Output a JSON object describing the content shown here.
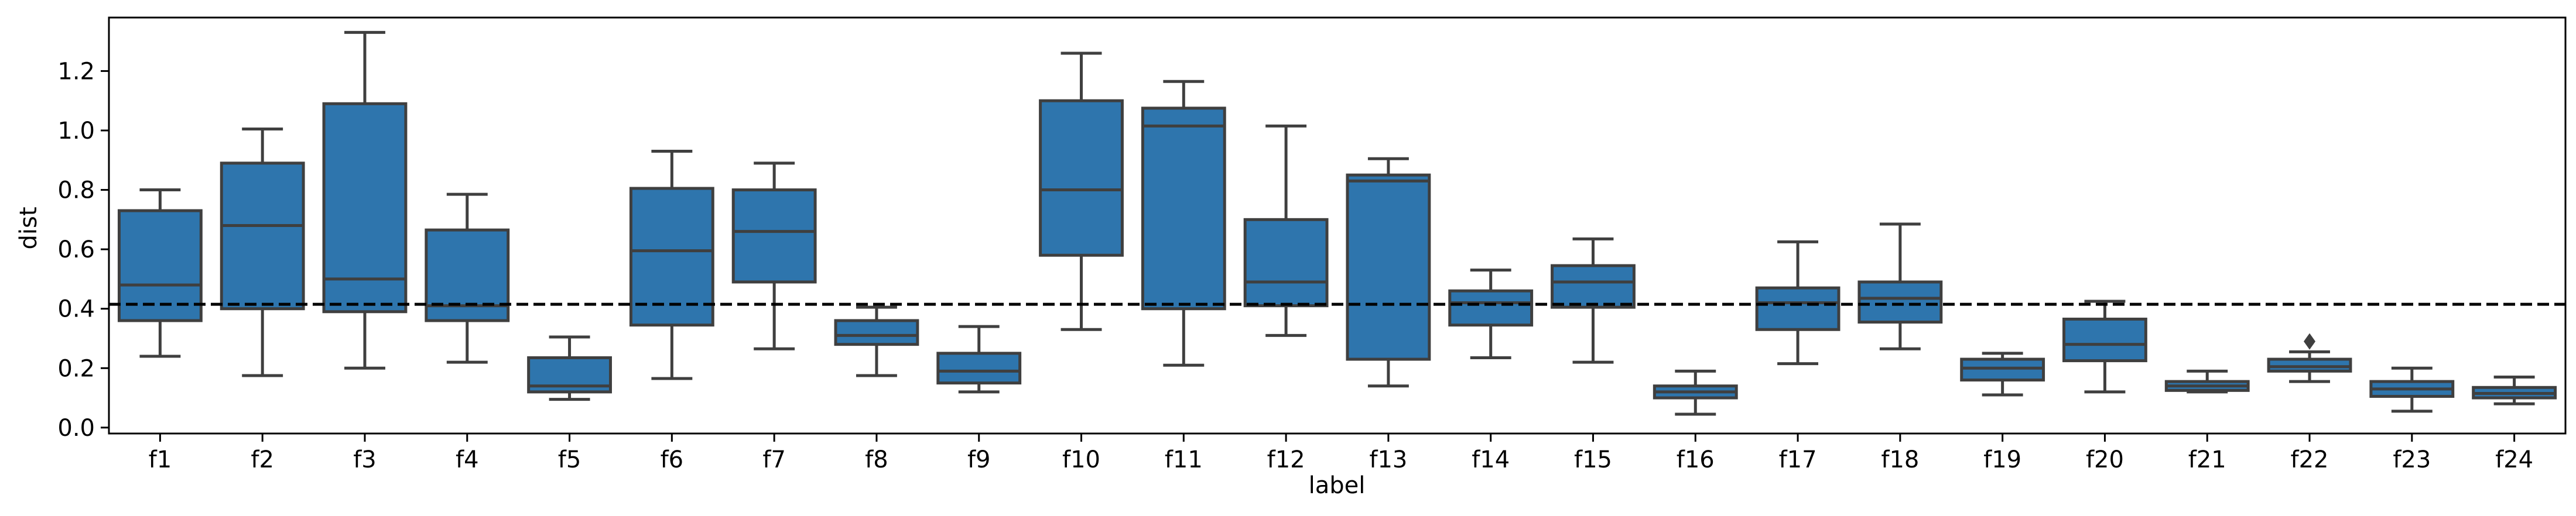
{
  "chart_data": {
    "type": "boxplot",
    "title": "",
    "xlabel": "label",
    "ylabel": "dist",
    "ylim": [
      -0.02,
      1.38
    ],
    "yticks": [
      0.0,
      0.2,
      0.4,
      0.6,
      0.8,
      1.0,
      1.2
    ],
    "ytick_labels": [
      "0.0",
      "0.2",
      "0.4",
      "0.6",
      "0.8",
      "1.0",
      "1.2"
    ],
    "grid": false,
    "reference_line": {
      "y": 0.415,
      "style": "dashed",
      "color": "#000000"
    },
    "box_color": "#2e75ad",
    "line_color": "#3f3f3f",
    "categories": [
      "f1",
      "f2",
      "f3",
      "f4",
      "f5",
      "f6",
      "f7",
      "f8",
      "f9",
      "f10",
      "f11",
      "f12",
      "f13",
      "f14",
      "f15",
      "f16",
      "f17",
      "f18",
      "f19",
      "f20",
      "f21",
      "f22",
      "f23",
      "f24"
    ],
    "boxes": [
      {
        "label": "f1",
        "whislo": 0.24,
        "q1": 0.36,
        "med": 0.48,
        "q3": 0.73,
        "whishi": 0.8,
        "fliers": []
      },
      {
        "label": "f2",
        "whislo": 0.175,
        "q1": 0.4,
        "med": 0.68,
        "q3": 0.89,
        "whishi": 1.005,
        "fliers": []
      },
      {
        "label": "f3",
        "whislo": 0.2,
        "q1": 0.39,
        "med": 0.5,
        "q3": 1.09,
        "whishi": 1.33,
        "fliers": []
      },
      {
        "label": "f4",
        "whislo": 0.22,
        "q1": 0.36,
        "med": 0.41,
        "q3": 0.665,
        "whishi": 0.785,
        "fliers": []
      },
      {
        "label": "f5",
        "whislo": 0.095,
        "q1": 0.12,
        "med": 0.14,
        "q3": 0.235,
        "whishi": 0.305,
        "fliers": []
      },
      {
        "label": "f6",
        "whislo": 0.165,
        "q1": 0.345,
        "med": 0.595,
        "q3": 0.805,
        "whishi": 0.93,
        "fliers": []
      },
      {
        "label": "f7",
        "whislo": 0.265,
        "q1": 0.49,
        "med": 0.66,
        "q3": 0.8,
        "whishi": 0.89,
        "fliers": []
      },
      {
        "label": "f8",
        "whislo": 0.175,
        "q1": 0.28,
        "med": 0.31,
        "q3": 0.36,
        "whishi": 0.405,
        "fliers": []
      },
      {
        "label": "f9",
        "whislo": 0.12,
        "q1": 0.15,
        "med": 0.19,
        "q3": 0.25,
        "whishi": 0.34,
        "fliers": []
      },
      {
        "label": "f10",
        "whislo": 0.33,
        "q1": 0.58,
        "med": 0.8,
        "q3": 1.1,
        "whishi": 1.26,
        "fliers": []
      },
      {
        "label": "f11",
        "whislo": 0.21,
        "q1": 0.4,
        "med": 1.015,
        "q3": 1.075,
        "whishi": 1.165,
        "fliers": []
      },
      {
        "label": "f12",
        "whislo": 0.31,
        "q1": 0.41,
        "med": 0.49,
        "q3": 0.7,
        "whishi": 1.015,
        "fliers": []
      },
      {
        "label": "f13",
        "whislo": 0.14,
        "q1": 0.23,
        "med": 0.83,
        "q3": 0.85,
        "whishi": 0.905,
        "fliers": []
      },
      {
        "label": "f14",
        "whislo": 0.235,
        "q1": 0.345,
        "med": 0.42,
        "q3": 0.46,
        "whishi": 0.53,
        "fliers": []
      },
      {
        "label": "f15",
        "whislo": 0.22,
        "q1": 0.405,
        "med": 0.49,
        "q3": 0.545,
        "whishi": 0.635,
        "fliers": []
      },
      {
        "label": "f16",
        "whislo": 0.045,
        "q1": 0.1,
        "med": 0.12,
        "q3": 0.14,
        "whishi": 0.19,
        "fliers": []
      },
      {
        "label": "f17",
        "whislo": 0.215,
        "q1": 0.33,
        "med": 0.42,
        "q3": 0.47,
        "whishi": 0.625,
        "fliers": []
      },
      {
        "label": "f18",
        "whislo": 0.265,
        "q1": 0.355,
        "med": 0.435,
        "q3": 0.49,
        "whishi": 0.685,
        "fliers": []
      },
      {
        "label": "f19",
        "whislo": 0.11,
        "q1": 0.16,
        "med": 0.2,
        "q3": 0.23,
        "whishi": 0.25,
        "fliers": []
      },
      {
        "label": "f20",
        "whislo": 0.12,
        "q1": 0.225,
        "med": 0.28,
        "q3": 0.365,
        "whishi": 0.425,
        "fliers": []
      },
      {
        "label": "f21",
        "whislo": 0.12,
        "q1": 0.125,
        "med": 0.14,
        "q3": 0.155,
        "whishi": 0.19,
        "fliers": []
      },
      {
        "label": "f22",
        "whislo": 0.155,
        "q1": 0.19,
        "med": 0.205,
        "q3": 0.23,
        "whishi": 0.255,
        "fliers": [
          0.29
        ]
      },
      {
        "label": "f23",
        "whislo": 0.055,
        "q1": 0.105,
        "med": 0.13,
        "q3": 0.155,
        "whishi": 0.2,
        "fliers": []
      },
      {
        "label": "f24",
        "whislo": 0.08,
        "q1": 0.1,
        "med": 0.115,
        "q3": 0.135,
        "whishi": 0.17,
        "fliers": []
      }
    ]
  }
}
